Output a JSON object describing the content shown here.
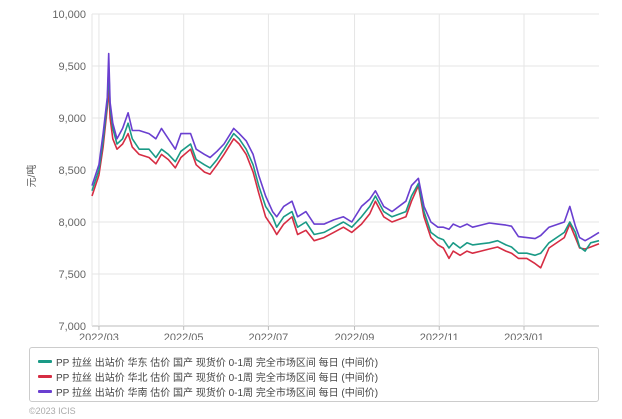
{
  "chart_data": {
    "type": "line",
    "ylabel": "元/吨",
    "ylim": [
      7000,
      10000
    ],
    "y_ticks": [
      "7,000",
      "7,500",
      "8,000",
      "8,500",
      "9,000",
      "9,500",
      "10,000"
    ],
    "x_ticks": [
      "2022/03",
      "2022/05",
      "2022/07",
      "2022/09",
      "2022/11",
      "2023/01"
    ],
    "x_range": [
      "2022-02-24",
      "2023-02-24"
    ],
    "grid": true,
    "legend_position": "bottom",
    "series": [
      {
        "name": "PP 拉丝 出站价 华东 估价 国产 现货价 0-1周 完全市场区间 每日 (中间价)",
        "color": "#1a9a86",
        "points": [
          [
            "2022-02-24",
            8300
          ],
          [
            "2022-03-01",
            8500
          ],
          [
            "2022-03-04",
            8780
          ],
          [
            "2022-03-07",
            9150
          ],
          [
            "2022-03-08",
            9500
          ],
          [
            "2022-03-09",
            9100
          ],
          [
            "2022-03-11",
            8900
          ],
          [
            "2022-03-14",
            8750
          ],
          [
            "2022-03-18",
            8800
          ],
          [
            "2022-03-22",
            8950
          ],
          [
            "2022-03-25",
            8800
          ],
          [
            "2022-03-30",
            8700
          ],
          [
            "2022-04-06",
            8700
          ],
          [
            "2022-04-11",
            8620
          ],
          [
            "2022-04-15",
            8700
          ],
          [
            "2022-04-20",
            8650
          ],
          [
            "2022-04-25",
            8580
          ],
          [
            "2022-04-29",
            8680
          ],
          [
            "2022-05-06",
            8750
          ],
          [
            "2022-05-10",
            8600
          ],
          [
            "2022-05-16",
            8550
          ],
          [
            "2022-05-20",
            8520
          ],
          [
            "2022-05-25",
            8600
          ],
          [
            "2022-05-30",
            8700
          ],
          [
            "2022-06-06",
            8850
          ],
          [
            "2022-06-10",
            8800
          ],
          [
            "2022-06-15",
            8700
          ],
          [
            "2022-06-20",
            8550
          ],
          [
            "2022-06-24",
            8350
          ],
          [
            "2022-06-29",
            8150
          ],
          [
            "2022-07-04",
            8050
          ],
          [
            "2022-07-07",
            7950
          ],
          [
            "2022-07-12",
            8050
          ],
          [
            "2022-07-18",
            8100
          ],
          [
            "2022-07-22",
            7950
          ],
          [
            "2022-07-28",
            8000
          ],
          [
            "2022-08-03",
            7880
          ],
          [
            "2022-08-10",
            7900
          ],
          [
            "2022-08-17",
            7950
          ],
          [
            "2022-08-24",
            8000
          ],
          [
            "2022-08-30",
            7950
          ],
          [
            "2022-09-06",
            8050
          ],
          [
            "2022-09-12",
            8150
          ],
          [
            "2022-09-16",
            8250
          ],
          [
            "2022-09-22",
            8100
          ],
          [
            "2022-09-28",
            8050
          ],
          [
            "2022-10-08",
            8100
          ],
          [
            "2022-10-12",
            8250
          ],
          [
            "2022-10-17",
            8370
          ],
          [
            "2022-10-21",
            8100
          ],
          [
            "2022-10-26",
            7900
          ],
          [
            "2022-10-31",
            7850
          ],
          [
            "2022-11-04",
            7830
          ],
          [
            "2022-11-08",
            7750
          ],
          [
            "2022-11-11",
            7800
          ],
          [
            "2022-11-16",
            7750
          ],
          [
            "2022-11-21",
            7800
          ],
          [
            "2022-11-25",
            7780
          ],
          [
            "2022-12-01",
            7790
          ],
          [
            "2022-12-07",
            7800
          ],
          [
            "2022-12-13",
            7820
          ],
          [
            "2022-12-19",
            7780
          ],
          [
            "2022-12-23",
            7760
          ],
          [
            "2022-12-28",
            7700
          ],
          [
            "2023-01-03",
            7700
          ],
          [
            "2023-01-09",
            7680
          ],
          [
            "2023-01-13",
            7700
          ],
          [
            "2023-01-19",
            7800
          ],
          [
            "2023-01-30",
            7900
          ],
          [
            "2023-02-03",
            8000
          ],
          [
            "2023-02-07",
            7900
          ],
          [
            "2023-02-10",
            7760
          ],
          [
            "2023-02-14",
            7720
          ],
          [
            "2023-02-18",
            7800
          ],
          [
            "2023-02-24",
            7820
          ]
        ]
      },
      {
        "name": "PP 拉丝 出站价 华北 估价 国产 现货价 0-1周 完全市场区间 每日 (中间价)",
        "color": "#d62d43",
        "points": [
          [
            "2022-02-24",
            8250
          ],
          [
            "2022-03-01",
            8450
          ],
          [
            "2022-03-04",
            8720
          ],
          [
            "2022-03-07",
            9100
          ],
          [
            "2022-03-08",
            9300
          ],
          [
            "2022-03-09",
            9000
          ],
          [
            "2022-03-11",
            8800
          ],
          [
            "2022-03-14",
            8700
          ],
          [
            "2022-03-18",
            8750
          ],
          [
            "2022-03-22",
            8850
          ],
          [
            "2022-03-25",
            8720
          ],
          [
            "2022-03-30",
            8650
          ],
          [
            "2022-04-06",
            8620
          ],
          [
            "2022-04-11",
            8560
          ],
          [
            "2022-04-15",
            8650
          ],
          [
            "2022-04-20",
            8600
          ],
          [
            "2022-04-25",
            8520
          ],
          [
            "2022-04-29",
            8620
          ],
          [
            "2022-05-06",
            8700
          ],
          [
            "2022-05-10",
            8550
          ],
          [
            "2022-05-16",
            8480
          ],
          [
            "2022-05-20",
            8460
          ],
          [
            "2022-05-25",
            8550
          ],
          [
            "2022-05-30",
            8650
          ],
          [
            "2022-06-06",
            8800
          ],
          [
            "2022-06-10",
            8750
          ],
          [
            "2022-06-15",
            8650
          ],
          [
            "2022-06-20",
            8480
          ],
          [
            "2022-06-24",
            8280
          ],
          [
            "2022-06-29",
            8050
          ],
          [
            "2022-07-04",
            7950
          ],
          [
            "2022-07-07",
            7880
          ],
          [
            "2022-07-12",
            7980
          ],
          [
            "2022-07-18",
            8050
          ],
          [
            "2022-07-22",
            7880
          ],
          [
            "2022-07-28",
            7920
          ],
          [
            "2022-08-03",
            7820
          ],
          [
            "2022-08-10",
            7850
          ],
          [
            "2022-08-17",
            7900
          ],
          [
            "2022-08-24",
            7950
          ],
          [
            "2022-08-30",
            7900
          ],
          [
            "2022-09-06",
            7980
          ],
          [
            "2022-09-12",
            8080
          ],
          [
            "2022-09-16",
            8200
          ],
          [
            "2022-09-22",
            8050
          ],
          [
            "2022-09-28",
            8000
          ],
          [
            "2022-10-08",
            8050
          ],
          [
            "2022-10-12",
            8200
          ],
          [
            "2022-10-17",
            8350
          ],
          [
            "2022-10-21",
            8050
          ],
          [
            "2022-10-26",
            7850
          ],
          [
            "2022-10-31",
            7780
          ],
          [
            "2022-11-04",
            7750
          ],
          [
            "2022-11-08",
            7650
          ],
          [
            "2022-11-11",
            7720
          ],
          [
            "2022-11-16",
            7680
          ],
          [
            "2022-11-21",
            7720
          ],
          [
            "2022-11-25",
            7700
          ],
          [
            "2022-12-01",
            7720
          ],
          [
            "2022-12-07",
            7740
          ],
          [
            "2022-12-13",
            7760
          ],
          [
            "2022-12-19",
            7720
          ],
          [
            "2022-12-23",
            7700
          ],
          [
            "2022-12-28",
            7650
          ],
          [
            "2023-01-03",
            7650
          ],
          [
            "2023-01-09",
            7600
          ],
          [
            "2023-01-13",
            7560
          ],
          [
            "2023-01-19",
            7750
          ],
          [
            "2023-01-30",
            7850
          ],
          [
            "2023-02-03",
            7980
          ],
          [
            "2023-02-07",
            7850
          ],
          [
            "2023-02-10",
            7750
          ],
          [
            "2023-02-14",
            7740
          ],
          [
            "2023-02-18",
            7760
          ],
          [
            "2023-02-24",
            7790
          ]
        ]
      },
      {
        "name": "PP 拉丝 出站价 华南 估价 国产 现货价 0-1周 完全市场区间 每日 (中间价)",
        "color": "#6a3fd0",
        "points": [
          [
            "2022-02-24",
            8350
          ],
          [
            "2022-03-01",
            8550
          ],
          [
            "2022-03-04",
            8850
          ],
          [
            "2022-03-07",
            9200
          ],
          [
            "2022-03-08",
            9620
          ],
          [
            "2022-03-09",
            9150
          ],
          [
            "2022-03-11",
            8950
          ],
          [
            "2022-03-14",
            8800
          ],
          [
            "2022-03-18",
            8900
          ],
          [
            "2022-03-22",
            9050
          ],
          [
            "2022-03-25",
            8880
          ],
          [
            "2022-03-30",
            8880
          ],
          [
            "2022-04-06",
            8850
          ],
          [
            "2022-04-11",
            8800
          ],
          [
            "2022-04-15",
            8900
          ],
          [
            "2022-04-20",
            8800
          ],
          [
            "2022-04-25",
            8700
          ],
          [
            "2022-04-29",
            8850
          ],
          [
            "2022-05-06",
            8850
          ],
          [
            "2022-05-10",
            8700
          ],
          [
            "2022-05-16",
            8650
          ],
          [
            "2022-05-20",
            8620
          ],
          [
            "2022-05-25",
            8680
          ],
          [
            "2022-05-30",
            8750
          ],
          [
            "2022-06-06",
            8900
          ],
          [
            "2022-06-10",
            8850
          ],
          [
            "2022-06-15",
            8780
          ],
          [
            "2022-06-20",
            8650
          ],
          [
            "2022-06-24",
            8450
          ],
          [
            "2022-06-29",
            8250
          ],
          [
            "2022-07-04",
            8100
          ],
          [
            "2022-07-07",
            8050
          ],
          [
            "2022-07-12",
            8150
          ],
          [
            "2022-07-18",
            8200
          ],
          [
            "2022-07-22",
            8050
          ],
          [
            "2022-07-28",
            8100
          ],
          [
            "2022-08-03",
            7980
          ],
          [
            "2022-08-10",
            7980
          ],
          [
            "2022-08-17",
            8020
          ],
          [
            "2022-08-24",
            8050
          ],
          [
            "2022-08-30",
            8000
          ],
          [
            "2022-09-06",
            8150
          ],
          [
            "2022-09-12",
            8220
          ],
          [
            "2022-09-16",
            8300
          ],
          [
            "2022-09-22",
            8150
          ],
          [
            "2022-09-28",
            8100
          ],
          [
            "2022-10-08",
            8200
          ],
          [
            "2022-10-12",
            8350
          ],
          [
            "2022-10-17",
            8420
          ],
          [
            "2022-10-21",
            8150
          ],
          [
            "2022-10-26",
            8000
          ],
          [
            "2022-10-31",
            7950
          ],
          [
            "2022-11-04",
            7950
          ],
          [
            "2022-11-08",
            7930
          ],
          [
            "2022-11-11",
            7980
          ],
          [
            "2022-11-16",
            7950
          ],
          [
            "2022-11-21",
            7980
          ],
          [
            "2022-11-25",
            7950
          ],
          [
            "2022-12-01",
            7970
          ],
          [
            "2022-12-07",
            7990
          ],
          [
            "2022-12-13",
            7980
          ],
          [
            "2022-12-19",
            7970
          ],
          [
            "2022-12-23",
            7960
          ],
          [
            "2022-12-28",
            7860
          ],
          [
            "2023-01-03",
            7850
          ],
          [
            "2023-01-09",
            7840
          ],
          [
            "2023-01-13",
            7870
          ],
          [
            "2023-01-19",
            7950
          ],
          [
            "2023-01-30",
            8000
          ],
          [
            "2023-02-03",
            8150
          ],
          [
            "2023-02-07",
            7960
          ],
          [
            "2023-02-10",
            7850
          ],
          [
            "2023-02-14",
            7820
          ],
          [
            "2023-02-18",
            7850
          ],
          [
            "2023-02-24",
            7900
          ]
        ]
      }
    ]
  },
  "footer_text": "©2023 ICIS"
}
